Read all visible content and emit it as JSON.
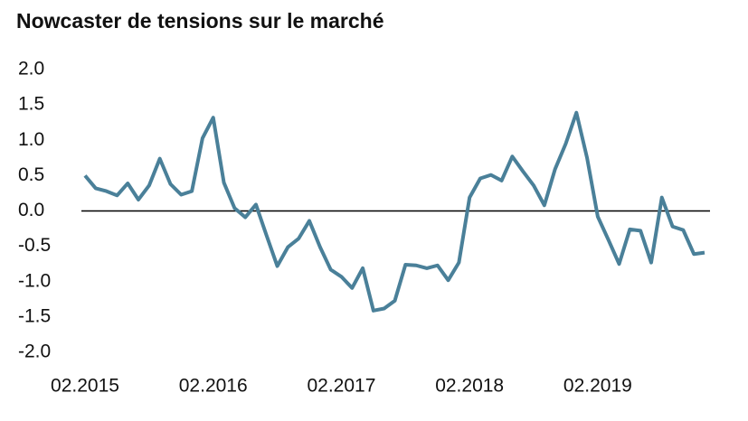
{
  "chart_data": {
    "type": "line",
    "title": "Nowcaster de tensions sur le marché",
    "categories": [
      "02.2015",
      null,
      null,
      null,
      null,
      null,
      null,
      null,
      null,
      null,
      null,
      null,
      "02.2016",
      null,
      null,
      null,
      null,
      null,
      null,
      null,
      null,
      null,
      null,
      null,
      "02.2017",
      null,
      null,
      null,
      null,
      null,
      null,
      null,
      null,
      null,
      null,
      null,
      "02.2018",
      null,
      null,
      null,
      null,
      null,
      null,
      null,
      null,
      null,
      null,
      null,
      "02.2019",
      null,
      null,
      null,
      null,
      null,
      null,
      null,
      null,
      null,
      null
    ],
    "series": [
      {
        "color": "#4a8099",
        "values": [
          0.5,
          0.32,
          0.28,
          0.22,
          0.39,
          0.16,
          0.36,
          0.74,
          0.38,
          0.23,
          0.28,
          1.03,
          1.32,
          0.4,
          0.04,
          -0.09,
          0.09,
          -0.35,
          -0.78,
          -0.51,
          -0.39,
          -0.14,
          -0.51,
          -0.83,
          -0.93,
          -1.09,
          -0.81,
          -1.41,
          -1.38,
          -1.27,
          -0.76,
          -0.77,
          -0.81,
          -0.77,
          -0.98,
          -0.73,
          0.19,
          0.46,
          0.51,
          0.43,
          0.77,
          0.56,
          0.36,
          0.08,
          0.59,
          0.95,
          1.39,
          0.75,
          -0.08,
          -0.41,
          -0.75,
          -0.26,
          -0.28,
          -0.73,
          0.19,
          -0.22,
          -0.27,
          -0.61,
          -0.59
        ]
      }
    ],
    "ylim": [
      -2,
      2
    ],
    "yticks": [
      {
        "value": 2,
        "label": "2.0"
      },
      {
        "value": 1.5,
        "label": "1.5"
      },
      {
        "value": 1,
        "label": "1.0"
      },
      {
        "value": 0.5,
        "label": "0.5"
      },
      {
        "value": 0,
        "label": "0.0"
      },
      {
        "value": -0.5,
        "label": "-0.5"
      },
      {
        "value": -1,
        "label": "-1.0"
      },
      {
        "value": -1.5,
        "label": "-1.5"
      },
      {
        "value": -2,
        "label": "-2.0"
      }
    ],
    "hline": 0,
    "grid": false
  }
}
